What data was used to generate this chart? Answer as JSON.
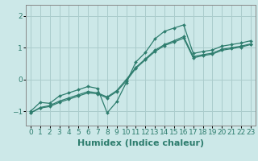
{
  "xlabel": "Humidex (Indice chaleur)",
  "bg_color": "#cce8e8",
  "grid_color": "#aacccc",
  "line_color": "#2e7d6e",
  "xlim": [
    -0.5,
    23.5
  ],
  "ylim": [
    -1.45,
    2.35
  ],
  "yticks": [
    -1,
    0,
    1,
    2
  ],
  "xticks": [
    0,
    1,
    2,
    3,
    4,
    5,
    6,
    7,
    8,
    9,
    10,
    11,
    12,
    13,
    14,
    15,
    16,
    17,
    18,
    19,
    20,
    21,
    22,
    23
  ],
  "line1_x": [
    0,
    1,
    2,
    3,
    4,
    5,
    6,
    7,
    8,
    9,
    10,
    11,
    12,
    13,
    14,
    15,
    16,
    17,
    18,
    19,
    20,
    21,
    22,
    23
  ],
  "line1_y": [
    -1.0,
    -0.72,
    -0.75,
    -0.52,
    -0.42,
    -0.32,
    -0.22,
    -0.28,
    -1.05,
    -0.7,
    -0.1,
    0.55,
    0.85,
    1.28,
    1.52,
    1.62,
    1.72,
    0.82,
    0.88,
    0.93,
    1.05,
    1.1,
    1.15,
    1.22
  ],
  "line2_x": [
    0,
    1,
    2,
    3,
    4,
    5,
    6,
    7,
    8,
    9,
    10,
    11,
    12,
    13,
    14,
    15,
    16,
    17,
    18,
    19,
    20,
    21,
    22,
    23
  ],
  "line2_y": [
    -1.05,
    -0.88,
    -0.82,
    -0.68,
    -0.58,
    -0.48,
    -0.38,
    -0.42,
    -0.55,
    -0.35,
    0.0,
    0.38,
    0.65,
    0.92,
    1.1,
    1.22,
    1.35,
    0.72,
    0.78,
    0.83,
    0.95,
    1.0,
    1.05,
    1.12
  ],
  "line3_x": [
    0,
    1,
    2,
    3,
    4,
    5,
    6,
    7,
    8,
    9,
    10,
    11,
    12,
    13,
    14,
    15,
    16,
    17,
    18,
    19,
    20,
    21,
    22,
    23
  ],
  "line3_y": [
    -1.05,
    -0.9,
    -0.85,
    -0.72,
    -0.62,
    -0.52,
    -0.42,
    -0.45,
    -0.58,
    -0.38,
    -0.05,
    0.35,
    0.62,
    0.88,
    1.07,
    1.18,
    1.3,
    0.68,
    0.75,
    0.8,
    0.92,
    0.97,
    1.02,
    1.1
  ],
  "xlabel_fontsize": 8,
  "tick_fontsize": 6.5
}
